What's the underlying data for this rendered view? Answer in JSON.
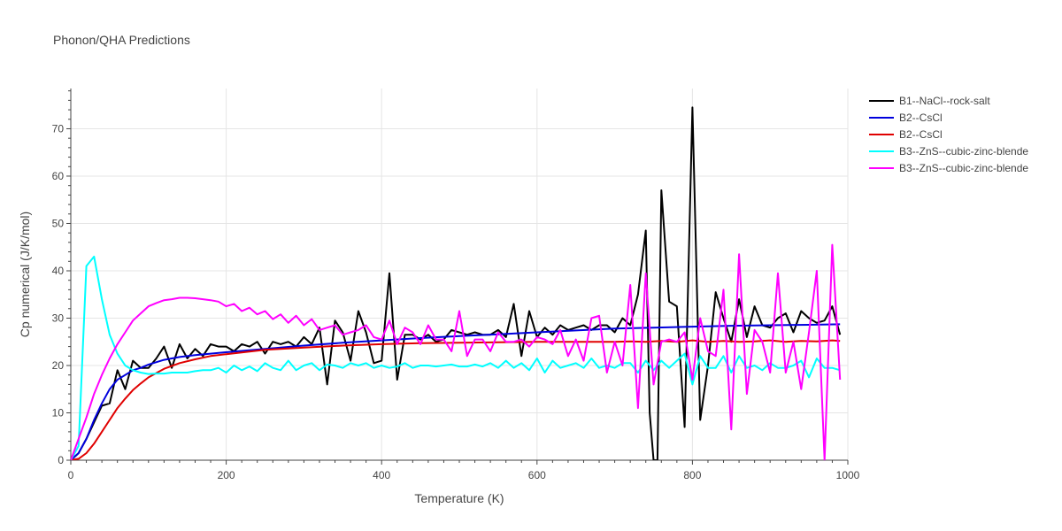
{
  "chart_data": {
    "type": "line",
    "title": "Phonon/QHA Predictions",
    "xlabel": "Temperature (K)",
    "ylabel": "Cp numerical (J/K/mol)",
    "xlim": [
      0,
      1000
    ],
    "ylim": [
      0,
      78.5
    ],
    "xticks": [
      0,
      200,
      400,
      600,
      800,
      1000
    ],
    "yticks": [
      0,
      10,
      20,
      30,
      40,
      50,
      60,
      70
    ],
    "grid": true,
    "legend_position": "top-right",
    "series": [
      {
        "name": "B1--NaCl--rock-salt",
        "color": "#000000",
        "x": [
          0,
          10,
          20,
          30,
          40,
          50,
          60,
          70,
          80,
          90,
          100,
          110,
          120,
          130,
          140,
          150,
          160,
          170,
          180,
          190,
          200,
          210,
          220,
          230,
          240,
          250,
          260,
          270,
          280,
          290,
          300,
          310,
          320,
          330,
          340,
          350,
          360,
          370,
          380,
          390,
          400,
          410,
          420,
          430,
          440,
          450,
          460,
          470,
          480,
          490,
          500,
          510,
          520,
          530,
          540,
          550,
          560,
          570,
          580,
          590,
          600,
          610,
          620,
          630,
          640,
          650,
          660,
          670,
          680,
          690,
          700,
          710,
          720,
          730,
          740,
          745,
          750,
          755,
          760,
          770,
          780,
          790,
          800,
          810,
          820,
          830,
          840,
          850,
          860,
          870,
          880,
          890,
          900,
          910,
          920,
          930,
          940,
          950,
          960,
          970,
          980,
          990
        ],
        "y": [
          0,
          1.5,
          4.5,
          8,
          11.5,
          12,
          19,
          15,
          21,
          19.5,
          19.5,
          21.5,
          24,
          19.5,
          24.5,
          21.5,
          23.5,
          22,
          24.5,
          24,
          24,
          23,
          24.5,
          24,
          25,
          22.5,
          25,
          24.5,
          25,
          24,
          26,
          24.5,
          28,
          16,
          29.5,
          27,
          21,
          31.5,
          27,
          20.5,
          21,
          39.5,
          17,
          26.5,
          26.5,
          25.5,
          26.5,
          25,
          25.5,
          27.5,
          27,
          26.5,
          27,
          26.5,
          26.5,
          27.5,
          26,
          33,
          22,
          31.5,
          26,
          28,
          26.5,
          28.5,
          27.5,
          28,
          28.5,
          27.5,
          28.5,
          28.5,
          27,
          30,
          28.5,
          35,
          48.5,
          10,
          0,
          0,
          57,
          33.5,
          32.5,
          7,
          74.5,
          8.5,
          20,
          35.5,
          30,
          25,
          34,
          26,
          32.5,
          28.5,
          28,
          30,
          31,
          27,
          31.5,
          30,
          29,
          29.5,
          32.5,
          26.5
        ]
      },
      {
        "name": "B2--CsCl",
        "color": "#0000dd",
        "x": [
          0,
          10,
          20,
          30,
          40,
          50,
          60,
          70,
          80,
          90,
          100,
          120,
          140,
          160,
          180,
          200,
          250,
          300,
          350,
          400,
          450,
          500,
          550,
          600,
          650,
          700,
          750,
          800,
          850,
          900,
          950,
          990
        ],
        "y": [
          0,
          1.5,
          4.5,
          8.5,
          12,
          15,
          17,
          18,
          19,
          19.5,
          20.2,
          21.2,
          21.8,
          22.2,
          22.5,
          22.8,
          23.5,
          24.2,
          24.8,
          25.3,
          25.8,
          26.2,
          26.6,
          27,
          27.4,
          27.8,
          28,
          28.2,
          28.4,
          28.5,
          28.6,
          28.7
        ]
      },
      {
        "name": "B2--CsCl",
        "color": "#e00000",
        "x": [
          0,
          10,
          20,
          30,
          40,
          50,
          60,
          70,
          80,
          90,
          100,
          120,
          140,
          160,
          180,
          200,
          250,
          300,
          350,
          400,
          450,
          500,
          550,
          600,
          650,
          700,
          720,
          740,
          760,
          780,
          800,
          820,
          840,
          860,
          880,
          900,
          920,
          940,
          960,
          980,
          990
        ],
        "y": [
          0,
          0.3,
          1.5,
          3.5,
          6,
          8.5,
          11,
          13,
          14.8,
          16.2,
          17.5,
          19.3,
          20.5,
          21.3,
          22,
          22.4,
          23.3,
          23.8,
          24.2,
          24.5,
          24.7,
          24.8,
          24.9,
          25,
          25,
          25,
          25.1,
          25,
          25.2,
          25,
          25.3,
          25,
          25.2,
          25,
          25.1,
          25.3,
          25,
          25.2,
          25.1,
          25.3,
          25.2
        ]
      },
      {
        "name": "B3--ZnS--cubic-zinc-blende",
        "color": "#00ffff",
        "x": [
          0,
          10,
          20,
          30,
          40,
          50,
          60,
          70,
          80,
          90,
          100,
          110,
          120,
          130,
          140,
          150,
          160,
          170,
          180,
          190,
          200,
          210,
          220,
          230,
          240,
          250,
          260,
          270,
          280,
          290,
          300,
          310,
          320,
          330,
          340,
          350,
          360,
          370,
          380,
          390,
          400,
          410,
          420,
          430,
          440,
          450,
          460,
          470,
          480,
          490,
          500,
          510,
          520,
          530,
          540,
          550,
          560,
          570,
          580,
          590,
          600,
          610,
          620,
          630,
          640,
          650,
          660,
          670,
          680,
          690,
          700,
          710,
          720,
          730,
          740,
          750,
          760,
          770,
          780,
          790,
          800,
          810,
          820,
          830,
          840,
          850,
          860,
          870,
          880,
          890,
          900,
          910,
          920,
          930,
          940,
          950,
          960,
          970,
          980,
          990
        ],
        "y": [
          0,
          3,
          41,
          43,
          34,
          26.5,
          22.5,
          20,
          19,
          18.5,
          18.2,
          18.3,
          18.3,
          18.5,
          18.5,
          18.5,
          18.8,
          19,
          19,
          19.5,
          18.5,
          20,
          19,
          19.8,
          18.8,
          20.5,
          19.5,
          19,
          21,
          19,
          20,
          20.5,
          19,
          20.2,
          20,
          19.5,
          20.5,
          20,
          20.5,
          19.5,
          20,
          19.5,
          19.8,
          20.5,
          19.5,
          20,
          20,
          19.8,
          20,
          20.2,
          19.8,
          19.8,
          20.2,
          19.8,
          20.5,
          19.5,
          21,
          19.5,
          20.5,
          19,
          21.5,
          18.5,
          21,
          19.5,
          20,
          20.5,
          19.5,
          21.5,
          19.5,
          20,
          19.5,
          20.5,
          20.5,
          18.5,
          21,
          19,
          21,
          19.5,
          21,
          22.5,
          16,
          22,
          19.5,
          19.5,
          22,
          18.5,
          22,
          19.5,
          20,
          19,
          20.5,
          19.5,
          19.5,
          20,
          21,
          17.5,
          21.5,
          19.5,
          19.5,
          19
        ]
      },
      {
        "name": "B3--ZnS--cubic-zinc-blende",
        "color": "#ff00ff",
        "x": [
          0,
          10,
          20,
          30,
          40,
          50,
          60,
          70,
          80,
          90,
          100,
          110,
          120,
          130,
          140,
          150,
          160,
          170,
          180,
          190,
          200,
          210,
          220,
          230,
          240,
          250,
          260,
          270,
          280,
          290,
          300,
          310,
          320,
          330,
          340,
          350,
          360,
          370,
          380,
          390,
          400,
          410,
          420,
          430,
          440,
          450,
          460,
          470,
          480,
          490,
          500,
          510,
          520,
          530,
          540,
          550,
          560,
          570,
          580,
          590,
          600,
          610,
          620,
          630,
          640,
          650,
          660,
          670,
          680,
          690,
          700,
          710,
          720,
          730,
          740,
          750,
          760,
          770,
          780,
          790,
          800,
          810,
          820,
          830,
          840,
          850,
          860,
          870,
          880,
          890,
          900,
          910,
          920,
          930,
          940,
          950,
          960,
          970,
          980,
          990
        ],
        "y": [
          0,
          4.5,
          9,
          14,
          18,
          21.5,
          24.5,
          27,
          29.5,
          31,
          32.5,
          33.2,
          33.8,
          34,
          34.3,
          34.3,
          34.2,
          34,
          33.8,
          33.5,
          32.5,
          33,
          31.5,
          32.2,
          30.8,
          31.5,
          29.8,
          30.8,
          29,
          30.5,
          28.5,
          29.8,
          27.5,
          28,
          28.5,
          26.5,
          27,
          27.5,
          28.5,
          26,
          25.5,
          29.5,
          24.5,
          28,
          27,
          24.5,
          28.5,
          25.5,
          25.5,
          23,
          31.5,
          22,
          25.5,
          25.5,
          23,
          27,
          25,
          25,
          25.5,
          24,
          26,
          25.5,
          24.5,
          27.5,
          22,
          25.5,
          21,
          30,
          30.5,
          18.5,
          25,
          20,
          37,
          11,
          39.5,
          16,
          25,
          25.5,
          25,
          27,
          17,
          30,
          23,
          22,
          36,
          6.5,
          43.5,
          14,
          27.5,
          25,
          18.5,
          39.5,
          18.5,
          25,
          15,
          27,
          40,
          0,
          45.5,
          17
        ]
      }
    ]
  }
}
